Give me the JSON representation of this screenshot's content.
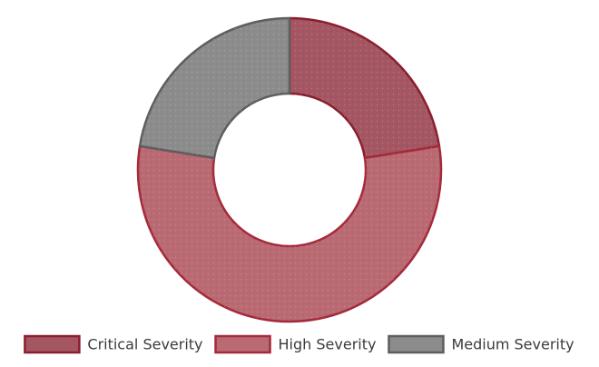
{
  "chart_data": {
    "type": "doughnut",
    "title": "",
    "categories": [
      "Critical Severity",
      "High Severity",
      "Medium Severity"
    ],
    "values": [
      22.5,
      55,
      22.5
    ],
    "start_angle_deg": 0,
    "direction": "clockwise",
    "colors": {
      "fill": [
        "#a45763",
        "#b96a73",
        "#8c8c8c"
      ],
      "border": [
        "#8a1e2e",
        "#a52a3a",
        "#5e5e5e"
      ]
    },
    "legend": {
      "position": "bottom"
    },
    "cutout": "hole"
  }
}
